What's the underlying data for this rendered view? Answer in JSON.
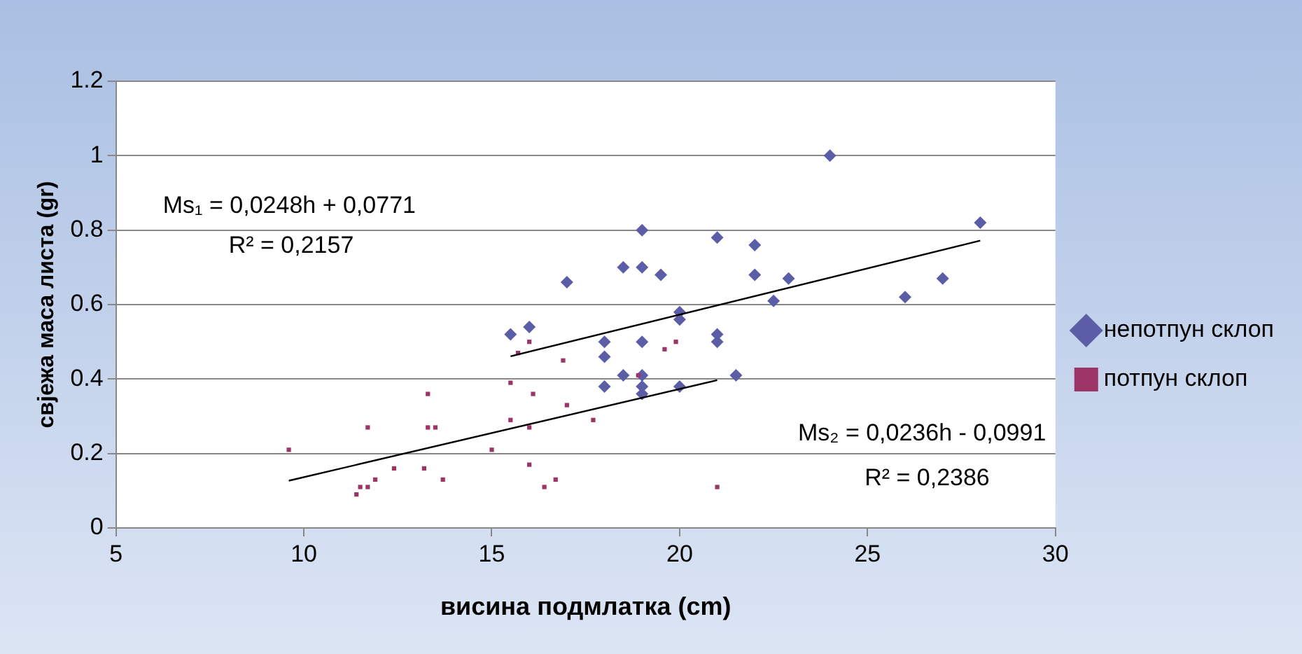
{
  "chart_data": {
    "type": "scatter",
    "xlabel": "висина подмлатка (cm)",
    "ylabel": "свјежа маса листа (gr)",
    "xlim": [
      5,
      30
    ],
    "xticks": [
      5,
      10,
      15,
      20,
      25,
      30
    ],
    "ylim": [
      0,
      1.2
    ],
    "yticks": [
      0,
      0.2,
      0.4,
      0.6,
      0.8,
      1,
      1.2
    ],
    "grid": "y",
    "legend": "right",
    "series": [
      {
        "name": "непотпун склоп",
        "color": "#5b5ea6",
        "marker": "diamond",
        "x": [
          24,
          28,
          19,
          21,
          22,
          18.5,
          19,
          19.5,
          17,
          22,
          22.9,
          22.5,
          20,
          20,
          26,
          27,
          15.5,
          16,
          18,
          19,
          21,
          21,
          18,
          18.5,
          19,
          21.5,
          18,
          19,
          20,
          19
        ],
        "values": [
          1,
          0.82,
          0.8,
          0.78,
          0.76,
          0.7,
          0.7,
          0.68,
          0.66,
          0.68,
          0.67,
          0.61,
          0.58,
          0.56,
          0.62,
          0.67,
          0.52,
          0.54,
          0.5,
          0.5,
          0.52,
          0.5,
          0.46,
          0.41,
          0.41,
          0.41,
          0.38,
          0.38,
          0.38,
          0.36
        ]
      },
      {
        "name": "потпун склоп",
        "color": "#9c3565",
        "marker": "square",
        "x": [
          16,
          15.7,
          16.9,
          19.6,
          19.9,
          15.5,
          16.1,
          17,
          15.5,
          16,
          17.7,
          15,
          16,
          16.7,
          16.4,
          21,
          9.6,
          13.3,
          11.7,
          13.3,
          13.5,
          12.4,
          13.2,
          11.9,
          13.7,
          11.5,
          11.7,
          11.4,
          18.9
        ],
        "values": [
          0.5,
          0.47,
          0.45,
          0.48,
          0.5,
          0.39,
          0.36,
          0.33,
          0.29,
          0.27,
          0.29,
          0.21,
          0.17,
          0.13,
          0.11,
          0.11,
          0.21,
          0.36,
          0.27,
          0.27,
          0.27,
          0.16,
          0.16,
          0.13,
          0.13,
          0.11,
          0.11,
          0.09,
          0.41
        ]
      },
      {
        "type": "line",
        "color": "#000000",
        "marker": "none",
        "x": [
          15.5,
          28
        ],
        "values": [
          0.461,
          0.772
        ]
      },
      {
        "type": "line",
        "color": "#000000",
        "marker": "none",
        "x": [
          9.6,
          21
        ],
        "values": [
          0.127,
          0.397
        ]
      }
    ],
    "annotations": [
      "Ms₁ = 0,0248h + 0,0771",
      "R² = 0,2157",
      "Ms₂ = 0,0236h - 0,0991",
      "R² = 0,2386"
    ]
  }
}
